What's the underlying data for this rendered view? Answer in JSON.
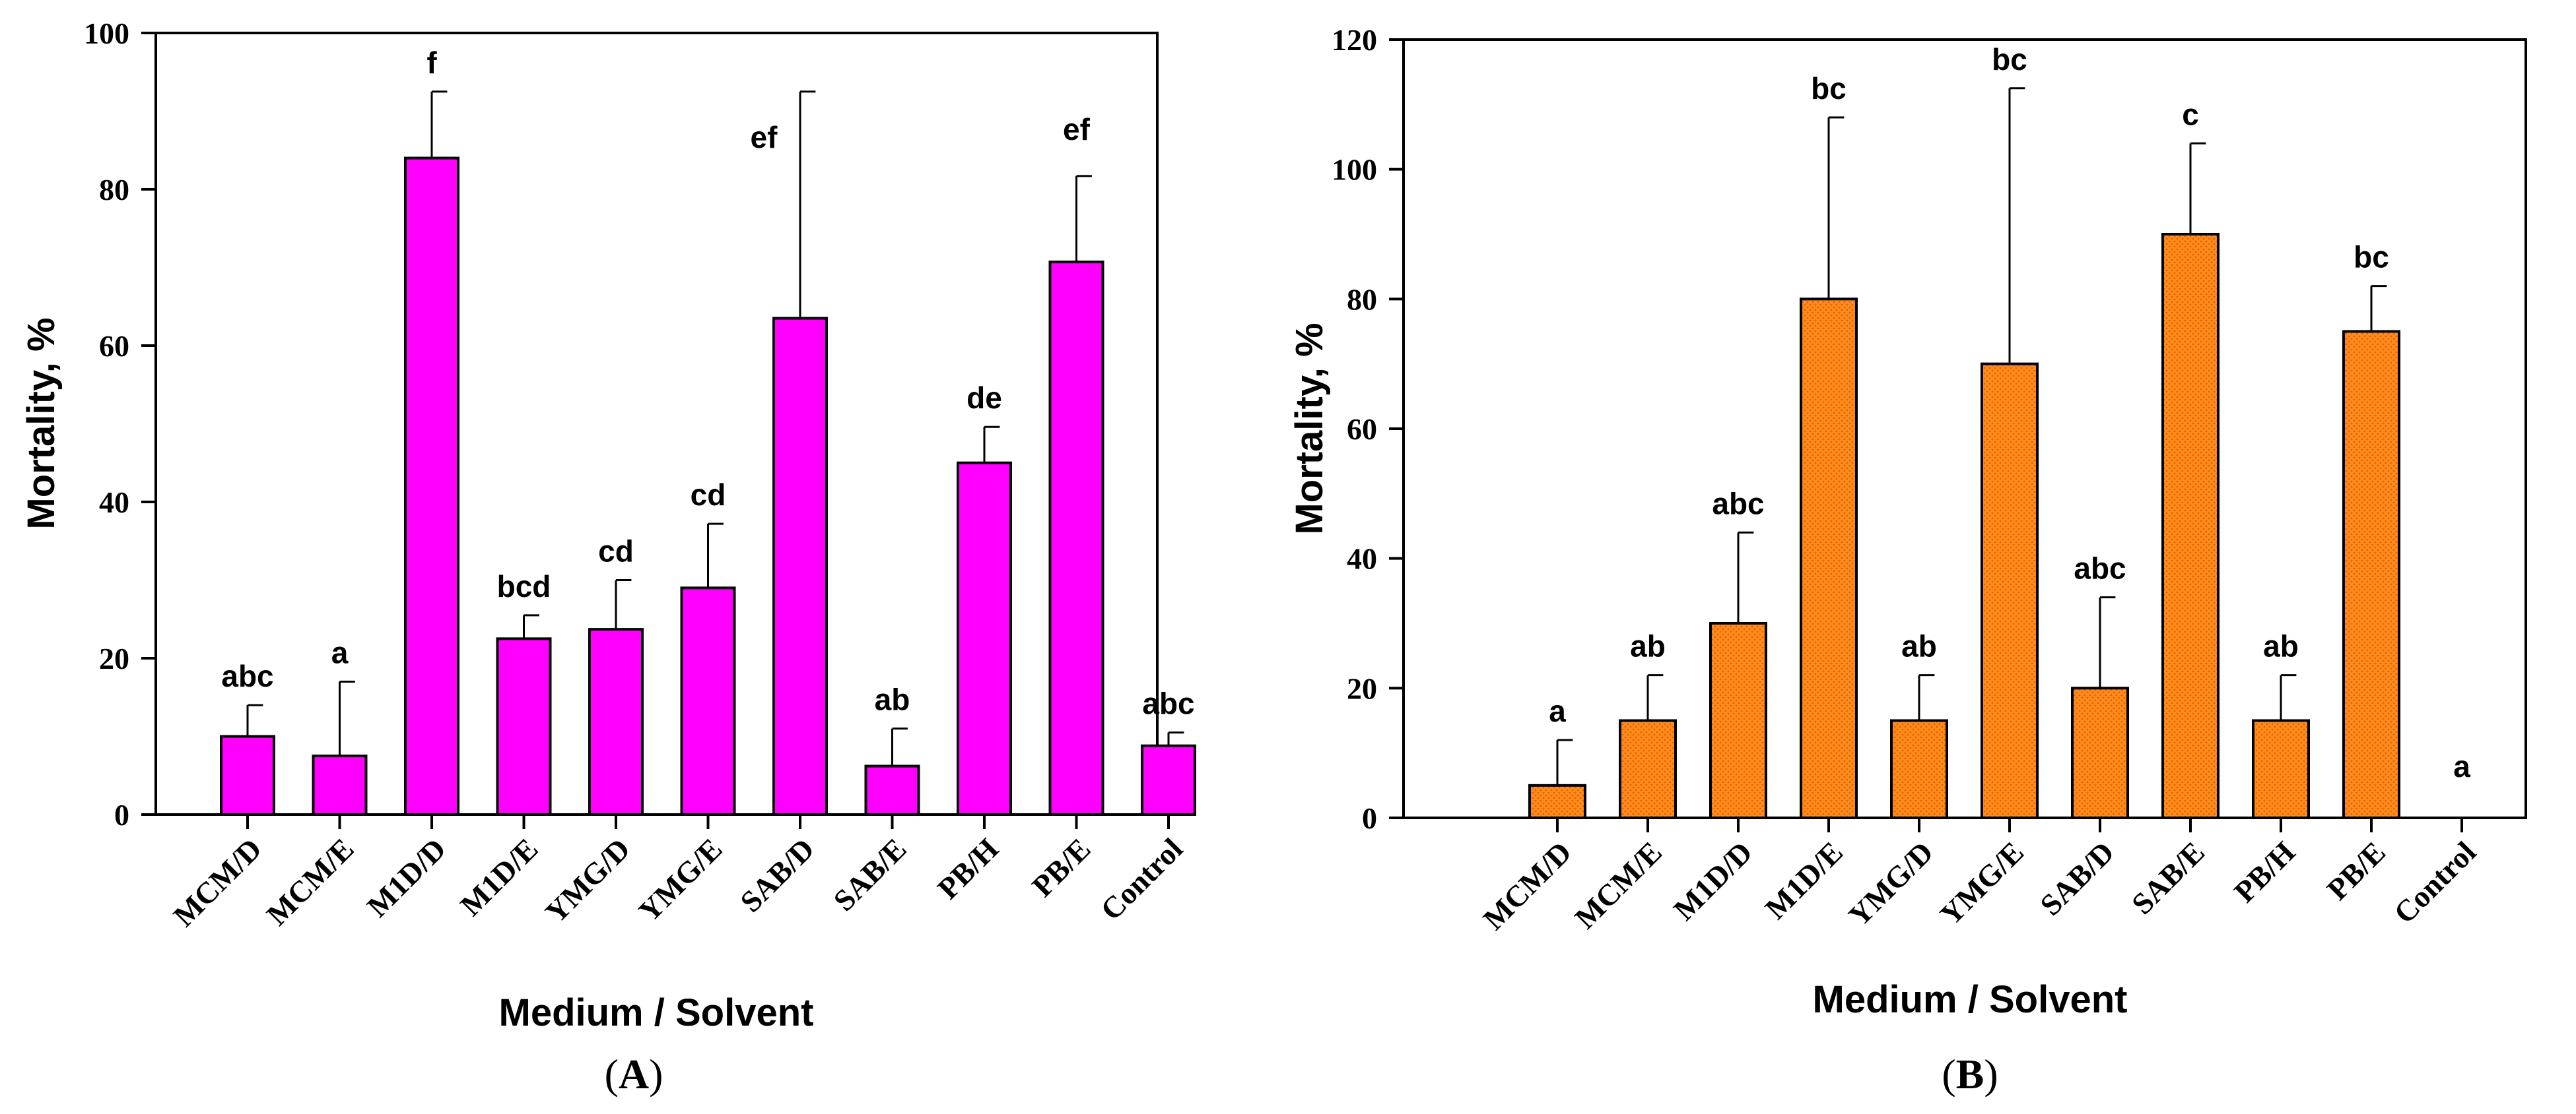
{
  "chart_data": [
    {
      "type": "bar",
      "panel": "A",
      "categories": [
        "MCM/D",
        "MCM/E",
        "M1D/D",
        "M1D/E",
        "YMG/D",
        "YMG/E",
        "SAB/D",
        "SAB/E",
        "PB/H",
        "PB/E",
        "Control"
      ],
      "values": [
        10,
        7.5,
        84,
        22.5,
        23.7,
        29,
        63.5,
        6.2,
        45,
        70.7,
        8.8
      ],
      "errors": [
        4,
        9.5,
        8.5,
        3,
        6.3,
        8.2,
        29,
        4.8,
        4.6,
        11,
        1.7
      ],
      "letters": [
        "abc",
        "a",
        "f",
        "bcd",
        "cd",
        "cd",
        "ef",
        "ab",
        "de",
        "ef",
        "abc"
      ],
      "xlabel": "Medium / Solvent",
      "ylabel": "Mortality, %",
      "ylim": [
        0,
        100
      ],
      "yticks": [
        0,
        20,
        40,
        60,
        80,
        100
      ],
      "ytick_labels": [
        "0",
        "20",
        "40",
        "60",
        "80",
        "100"
      ],
      "bar_color": "#ff00ff",
      "caption_open": "(",
      "caption_letter": "A",
      "caption_close": ")"
    },
    {
      "type": "bar",
      "panel": "B",
      "categories": [
        "MCM/D",
        "MCM/E",
        "M1D/D",
        "M1D/E",
        "YMG/D",
        "YMG/E",
        "SAB/D",
        "SAB/E",
        "PB/H",
        "PB/E",
        "Control"
      ],
      "values": [
        5,
        15,
        30,
        80,
        15,
        70,
        20,
        90,
        15,
        75,
        0
      ],
      "errors": [
        7,
        7,
        14,
        28,
        7,
        42.5,
        14,
        14,
        7,
        7,
        0
      ],
      "letters": [
        "a",
        "ab",
        "abc",
        "bc",
        "ab",
        "bc",
        "abc",
        "c",
        "ab",
        "bc",
        "a"
      ],
      "xlabel": "Medium / Solvent",
      "ylabel": "Mortality, %",
      "ylim": [
        0,
        120
      ],
      "yticks": [
        0,
        20,
        40,
        60,
        80,
        100,
        120
      ],
      "ytick_labels": [
        "0",
        "20",
        "40",
        "60",
        "80",
        "100",
        "120"
      ],
      "bar_color": "#ff8c1a",
      "caption_open": "(",
      "caption_letter": "B",
      "caption_close": ")"
    }
  ]
}
